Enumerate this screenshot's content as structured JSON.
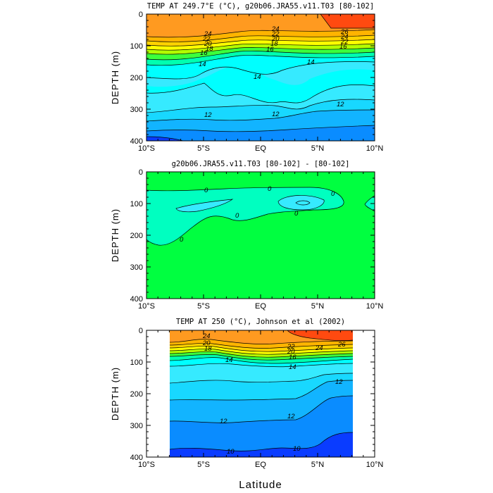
{
  "chart_data": [
    {
      "type": "contour",
      "title": "TEMP AT 249.7°E (°C), g20b06.JRA55.v11.T03 [80-102]",
      "ylabel": "DEPTH (m)",
      "xlabel": "",
      "x_ticks": [
        "10°S",
        "5°S",
        "EQ",
        "5°N",
        "10°N"
      ],
      "y_ticks": [
        "0",
        "100",
        "200",
        "300",
        "400"
      ],
      "xlim": [
        -10,
        10
      ],
      "ylim": [
        400,
        0
      ],
      "contour_labels": [
        "24",
        "22",
        "20",
        "18",
        "16",
        "14",
        "14",
        "14",
        "12",
        "12",
        "12",
        "24",
        "22",
        "20",
        "18",
        "16",
        "26",
        "24",
        "22",
        "16"
      ],
      "levels": [
        10,
        12,
        14,
        16,
        18,
        20,
        22,
        24,
        26
      ],
      "colors": [
        "#0a3cff",
        "#0a8cff",
        "#12b4ff",
        "#18d8ff",
        "#36eaff",
        "#00ffff",
        "#00ffb0",
        "#3cff3c",
        "#b4ff00",
        "#ffff00",
        "#ffd200",
        "#ffb400",
        "#ff9a20",
        "#ff5a10"
      ]
    },
    {
      "type": "contour",
      "title": "g20b06.JRA55.v11.T03 [80-102] - [80-102]",
      "ylabel": "DEPTH (m)",
      "xlabel": "",
      "x_ticks": [
        "10°S",
        "5°S",
        "EQ",
        "5°N",
        "10°N"
      ],
      "y_ticks": [
        "0",
        "100",
        "200",
        "300",
        "400"
      ],
      "xlim": [
        -10,
        10
      ],
      "ylim": [
        400,
        0
      ],
      "contour_labels": [
        "0",
        "0",
        "0",
        "0",
        "0",
        "0"
      ],
      "levels": [
        0
      ],
      "colors": [
        "#00ff40",
        "#00ffc0"
      ]
    },
    {
      "type": "contour",
      "title": "TEMP AT 250 (°C), Johnson et al (2002)",
      "ylabel": "DEPTH (m)",
      "xlabel": "Latitude",
      "x_ticks": [
        "10°S",
        "5°S",
        "EQ",
        "5°N",
        "10°N"
      ],
      "y_ticks": [
        "0",
        "100",
        "200",
        "300",
        "400"
      ],
      "xlim": [
        -10,
        10
      ],
      "ylim": [
        400,
        0
      ],
      "contour_labels": [
        "24",
        "20",
        "18",
        "14",
        "14",
        "12",
        "12",
        "12",
        "10",
        "10",
        "22",
        "20",
        "16",
        "24",
        "26"
      ],
      "levels": [
        10,
        12,
        14,
        16,
        18,
        20,
        22,
        24,
        26
      ],
      "colors": [
        "#0a3cff",
        "#0a8cff",
        "#12b4ff",
        "#18d8ff",
        "#36eaff",
        "#00ffff",
        "#00ffb0",
        "#3cff3c",
        "#b4ff00",
        "#ffff00",
        "#ffd200",
        "#ffb400",
        "#ff9a20",
        "#ff5a10"
      ]
    }
  ]
}
